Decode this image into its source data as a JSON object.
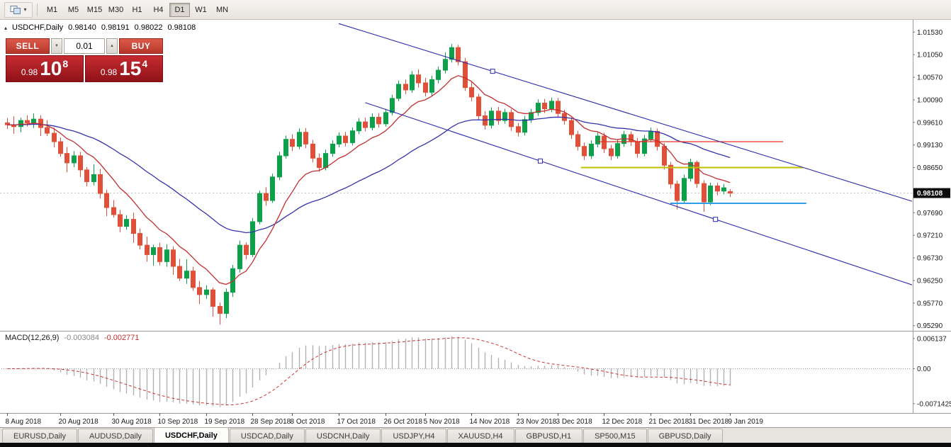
{
  "toolbar": {
    "timeframes": [
      "M1",
      "M5",
      "M15",
      "M30",
      "H1",
      "H4",
      "D1",
      "W1",
      "MN"
    ],
    "active": "D1",
    "caret_glyph": "▾"
  },
  "chart_header": {
    "collapse_glyph": "▴",
    "symbol_period": "USDCHF,Daily",
    "open": "0.98140",
    "high": "0.98191",
    "low": "0.98022",
    "close": "0.98108"
  },
  "trade_panel": {
    "sell": "SELL",
    "buy": "BUY",
    "volume": "0.01",
    "spin_down_glyph": "▼",
    "spin_up_glyph": "▲",
    "bid_prefix": "0.98",
    "bid_big": "10",
    "bid_sup": "8",
    "ask_prefix": "0.98",
    "ask_big": "15",
    "ask_sup": "4"
  },
  "chart_data": {
    "type": "candlestick",
    "symbol": "USDCHF",
    "timeframe": "Daily",
    "current_price": "0.98108",
    "axis": {
      "price_range": [
        0.9518,
        1.0179
      ],
      "x0": 10,
      "bar_width": 9.36,
      "y_ticks": [
        "1.01530",
        "1.01050",
        "1.00570",
        "1.00090",
        "0.99610",
        "0.99130",
        "0.98650",
        "0.97690",
        "0.97210",
        "0.96730",
        "0.96250",
        "0.95770",
        "0.95290"
      ]
    },
    "x_ticks": [
      {
        "label": "8 Aug 2018",
        "index": 0
      },
      {
        "label": "20 Aug 2018",
        "index": 8
      },
      {
        "label": "30 Aug 2018",
        "index": 16
      },
      {
        "label": "10 Sep 2018",
        "index": 23
      },
      {
        "label": "19 Sep 2018",
        "index": 30
      },
      {
        "label": "28 Sep 2018",
        "index": 37
      },
      {
        "label": "8 Oct 2018",
        "index": 43
      },
      {
        "label": "17 Oct 2018",
        "index": 50
      },
      {
        "label": "26 Oct 2018",
        "index": 57
      },
      {
        "label": "5 Nov 2018",
        "index": 63
      },
      {
        "label": "14 Nov 2018",
        "index": 70
      },
      {
        "label": "23 Nov 2018",
        "index": 77
      },
      {
        "label": "3 Dec 2018",
        "index": 83
      },
      {
        "label": "12 Dec 2018",
        "index": 90
      },
      {
        "label": "21 Dec 2018",
        "index": 97
      },
      {
        "label": "31 Dec 2018",
        "index": 103
      },
      {
        "label": "9 Jan 2019",
        "index": 109
      }
    ],
    "candles": [
      [
        0.996,
        0.997,
        0.9947,
        0.9956
      ],
      [
        0.9956,
        0.9974,
        0.9937,
        0.9952
      ],
      [
        0.9952,
        0.9971,
        0.994,
        0.9965
      ],
      [
        0.9965,
        0.9976,
        0.9952,
        0.996
      ],
      [
        0.996,
        0.998,
        0.9949,
        0.9968
      ],
      [
        0.9968,
        0.9976,
        0.9932,
        0.995
      ],
      [
        0.995,
        0.9966,
        0.9932,
        0.9938
      ],
      [
        0.9938,
        0.995,
        0.9908,
        0.992
      ],
      [
        0.992,
        0.9929,
        0.9888,
        0.9895
      ],
      [
        0.9895,
        0.9909,
        0.9855,
        0.9875
      ],
      [
        0.9875,
        0.99,
        0.9866,
        0.989
      ],
      [
        0.989,
        0.9898,
        0.9845,
        0.986
      ],
      [
        0.986,
        0.9866,
        0.9825,
        0.9835
      ],
      [
        0.9835,
        0.9872,
        0.9827,
        0.985
      ],
      [
        0.985,
        0.9862,
        0.9799,
        0.981
      ],
      [
        0.981,
        0.9818,
        0.9762,
        0.978
      ],
      [
        0.978,
        0.9796,
        0.9759,
        0.9765
      ],
      [
        0.9765,
        0.9775,
        0.9728,
        0.974
      ],
      [
        0.974,
        0.9764,
        0.9733,
        0.9755
      ],
      [
        0.9755,
        0.9769,
        0.9705,
        0.9725
      ],
      [
        0.9725,
        0.9735,
        0.9691,
        0.97
      ],
      [
        0.97,
        0.9718,
        0.9665,
        0.968
      ],
      [
        0.968,
        0.9701,
        0.9656,
        0.9695
      ],
      [
        0.9695,
        0.9705,
        0.9657,
        0.9665
      ],
      [
        0.9665,
        0.9702,
        0.9654,
        0.969
      ],
      [
        0.969,
        0.9698,
        0.9637,
        0.9655
      ],
      [
        0.9655,
        0.9671,
        0.9624,
        0.963
      ],
      [
        0.963,
        0.967,
        0.9618,
        0.9645
      ],
      [
        0.9645,
        0.9654,
        0.9603,
        0.961
      ],
      [
        0.961,
        0.9624,
        0.9575,
        0.9595
      ],
      [
        0.9595,
        0.9615,
        0.9586,
        0.9605
      ],
      [
        0.9605,
        0.961,
        0.9548,
        0.957
      ],
      [
        0.957,
        0.9578,
        0.9531,
        0.9555
      ],
      [
        0.9555,
        0.9608,
        0.9545,
        0.96
      ],
      [
        0.96,
        0.9658,
        0.959,
        0.965
      ],
      [
        0.965,
        0.971,
        0.9642,
        0.97
      ],
      [
        0.97,
        0.9706,
        0.967,
        0.968
      ],
      [
        0.968,
        0.9758,
        0.9675,
        0.975
      ],
      [
        0.975,
        0.9816,
        0.9744,
        0.981
      ],
      [
        0.981,
        0.9823,
        0.9784,
        0.9795
      ],
      [
        0.9795,
        0.9852,
        0.979,
        0.9845
      ],
      [
        0.9845,
        0.9899,
        0.9838,
        0.989
      ],
      [
        0.989,
        0.9933,
        0.9884,
        0.9925
      ],
      [
        0.9925,
        0.9936,
        0.99,
        0.991
      ],
      [
        0.991,
        0.9948,
        0.9904,
        0.994
      ],
      [
        0.994,
        0.9949,
        0.9906,
        0.9915
      ],
      [
        0.9915,
        0.9924,
        0.9876,
        0.9885
      ],
      [
        0.9885,
        0.9895,
        0.9856,
        0.9865
      ],
      [
        0.9865,
        0.9903,
        0.9859,
        0.9895
      ],
      [
        0.9895,
        0.9923,
        0.9888,
        0.9915
      ],
      [
        0.9915,
        0.994,
        0.9908,
        0.9932
      ],
      [
        0.9932,
        0.9941,
        0.991,
        0.9918
      ],
      [
        0.9918,
        0.995,
        0.9912,
        0.9943
      ],
      [
        0.9943,
        0.997,
        0.9936,
        0.9962
      ],
      [
        0.9962,
        0.9971,
        0.9942,
        0.995
      ],
      [
        0.995,
        0.998,
        0.9944,
        0.9972
      ],
      [
        0.9972,
        0.9981,
        0.995,
        0.9958
      ],
      [
        0.9958,
        0.999,
        0.9952,
        0.9982
      ],
      [
        0.9982,
        1.002,
        0.9976,
        1.0012
      ],
      [
        1.0012,
        1.005,
        1.0006,
        1.0042
      ],
      [
        1.0042,
        1.0052,
        1.0021,
        1.003
      ],
      [
        1.003,
        1.007,
        1.0024,
        1.0062
      ],
      [
        1.0062,
        1.0074,
        1.0035,
        1.0045
      ],
      [
        1.0045,
        1.0056,
        1.0016,
        1.0025
      ],
      [
        1.0025,
        1.006,
        1.0017,
        1.0052
      ],
      [
        1.0052,
        1.008,
        1.0044,
        1.0072
      ],
      [
        1.0072,
        1.011,
        1.0065,
        1.0095
      ],
      [
        1.0095,
        1.0128,
        1.0088,
        1.012
      ],
      [
        1.012,
        1.0126,
        1.0082,
        1.009
      ],
      [
        1.009,
        1.0098,
        1.0028,
        1.0035
      ],
      [
        1.0035,
        1.0048,
        1.0006,
        1.0015
      ],
      [
        1.0015,
        1.0022,
        0.9966,
        0.9975
      ],
      [
        0.9975,
        0.9985,
        0.9946,
        0.9955
      ],
      [
        0.9955,
        0.9993,
        0.9948,
        0.9985
      ],
      [
        0.9985,
        0.9994,
        0.9956,
        0.9965
      ],
      [
        0.9965,
        0.999,
        0.9958,
        0.9982
      ],
      [
        0.9982,
        0.9989,
        0.9943,
        0.9952
      ],
      [
        0.9952,
        0.996,
        0.9931,
        0.994
      ],
      [
        0.994,
        0.9975,
        0.9933,
        0.9967
      ],
      [
        0.9967,
        0.999,
        0.996,
        0.9982
      ],
      [
        0.9982,
        1.001,
        0.9975,
        1.0002
      ],
      [
        1.0002,
        1.0011,
        0.9981,
        0.999
      ],
      [
        0.999,
        1.0014,
        0.9983,
        1.0006
      ],
      [
        1.0006,
        1.0013,
        0.9971,
        0.998
      ],
      [
        0.998,
        0.9988,
        0.9956,
        0.9965
      ],
      [
        0.9965,
        0.9972,
        0.9926,
        0.9935
      ],
      [
        0.9935,
        0.9943,
        0.9901,
        0.991
      ],
      [
        0.991,
        0.9918,
        0.9881,
        0.989
      ],
      [
        0.989,
        0.9923,
        0.9883,
        0.9915
      ],
      [
        0.9915,
        0.994,
        0.9908,
        0.9932
      ],
      [
        0.9932,
        0.9939,
        0.9896,
        0.9905
      ],
      [
        0.9905,
        0.9913,
        0.9881,
        0.989
      ],
      [
        0.989,
        0.9924,
        0.9884,
        0.9916
      ],
      [
        0.9916,
        0.9943,
        0.9909,
        0.9935
      ],
      [
        0.9935,
        0.9942,
        0.9911,
        0.992
      ],
      [
        0.992,
        0.9928,
        0.9886,
        0.9895
      ],
      [
        0.9895,
        0.9934,
        0.9889,
        0.9926
      ],
      [
        0.9926,
        0.995,
        0.9919,
        0.9942
      ],
      [
        0.9942,
        0.9948,
        0.9901,
        0.991
      ],
      [
        0.991,
        0.9917,
        0.9861,
        0.987
      ],
      [
        0.987,
        0.9877,
        0.982,
        0.983
      ],
      [
        0.983,
        0.9837,
        0.9776,
        0.9795
      ],
      [
        0.9795,
        0.985,
        0.9788,
        0.9842
      ],
      [
        0.9842,
        0.9884,
        0.9835,
        0.9876
      ],
      [
        0.9876,
        0.988,
        0.9822,
        0.9831
      ],
      [
        0.9831,
        0.9838,
        0.9771,
        0.9792
      ],
      [
        0.9792,
        0.9833,
        0.9785,
        0.9826
      ],
      [
        0.9826,
        0.9833,
        0.9806,
        0.9815
      ],
      [
        0.9815,
        0.983,
        0.9808,
        0.9822
      ],
      [
        0.9814,
        0.98191,
        0.98022,
        0.98108
      ]
    ],
    "overlays": {
      "ma_fast": {
        "period": 10,
        "color": "#c03030"
      },
      "ma_slow": {
        "period": 34,
        "color": "#3333aa"
      }
    },
    "annotations": {
      "hlines": [
        {
          "name": "resistance-hline-red",
          "price": 0.992,
          "i1": 89,
          "i2": 117,
          "color": "#e03224",
          "width": 1.2
        },
        {
          "name": "support-hline-yellow",
          "price": 0.9865,
          "i1": 86.5,
          "i2": 120,
          "color": "#bcc000",
          "width": 2
        },
        {
          "name": "support-hline-blue",
          "price": 0.9789,
          "i1": 100,
          "i2": 120.5,
          "color": "#2e9fe6",
          "width": 2
        }
      ],
      "trendlines": [
        {
          "name": "channel-upper-trendline",
          "i1": 50,
          "p1": 1.0171,
          "i2": 137,
          "p2": 0.9791,
          "color": "#2a2aad",
          "handles": [
            73.2
          ]
        },
        {
          "name": "channel-lower-trendline",
          "i1": 54,
          "p1": 1.0003,
          "i2": 137,
          "p2": 0.9613,
          "color": "#2a2aad",
          "handles": [
            80.4,
            106.8
          ]
        }
      ]
    },
    "bid_line": {
      "price": 0.98108
    },
    "colors": {
      "up": "#0ca04a",
      "down": "#e05038",
      "bid_line": "#c4c4c4",
      "price_box_bg": "#0b0b0b"
    }
  },
  "macd": {
    "label": "MACD(12,26,9)",
    "value": "-0.003084",
    "signal_value": "-0.002771",
    "params": {
      "fast": 12,
      "slow": 26,
      "signal": 9
    },
    "histogram_color": "#b2b2b2",
    "signal_color": "#cf3434",
    "y_ticks": [
      {
        "label": "0.006137",
        "value": 0.006137
      },
      {
        "label": "0.00",
        "value": 0
      },
      {
        "label": "-0.0071425",
        "value": -0.0071425
      }
    ]
  },
  "tabs": {
    "items": [
      "EURUSD,Daily",
      "AUDUSD,Daily",
      "USDCHF,Daily",
      "USDCAD,Daily",
      "USDCNH,Daily",
      "USDJPY,H4",
      "XAUUSD,H4",
      "GBPUSD,H1",
      "SP500,M15",
      "GBPUSD,Daily"
    ],
    "active": "USDCHF,Daily"
  }
}
